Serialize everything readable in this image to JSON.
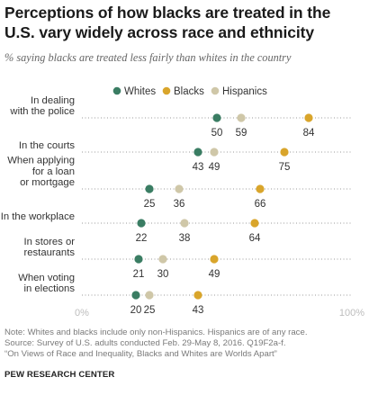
{
  "chart_data": {
    "type": "scatter",
    "title": "Perceptions of how blacks are treated in the U.S. vary widely across race and ethnicity",
    "subtitle": "% saying blacks are treated less fairly than whites in the country",
    "categories": [
      [
        "In dealing",
        "with the police"
      ],
      [
        "In the courts"
      ],
      [
        "When applying",
        "for a loan",
        "or mortgage"
      ],
      [
        "In the workplace"
      ],
      [
        "In stores or",
        "restaurants"
      ],
      [
        "When voting",
        "in elections"
      ]
    ],
    "series": [
      {
        "name": "Whites",
        "color": "#3a7d63",
        "values": [
          50,
          43,
          25,
          22,
          21,
          20
        ]
      },
      {
        "name": "Blacks",
        "color": "#d9a52b",
        "values": [
          84,
          75,
          66,
          64,
          49,
          43
        ]
      },
      {
        "name": "Hispanics",
        "color": "#cfc7a8",
        "values": [
          59,
          49,
          36,
          38,
          30,
          25
        ]
      }
    ],
    "xlim": [
      0,
      100
    ],
    "x_tick_labels": [
      "0%",
      "100%"
    ],
    "legend_position": "top-center",
    "grid": false
  },
  "notes": {
    "line1": "Note: Whites and blacks include only non-Hispanics. Hispanics are of any race.",
    "line2": "Source: Survey of U.S. adults conducted Feb. 29-May 8, 2016. Q19F2a-f.",
    "line3": "“On Views of Race and Inequality, Blacks and Whites are Worlds Apart”"
  },
  "brand": "PEW RESEARCH CENTER"
}
